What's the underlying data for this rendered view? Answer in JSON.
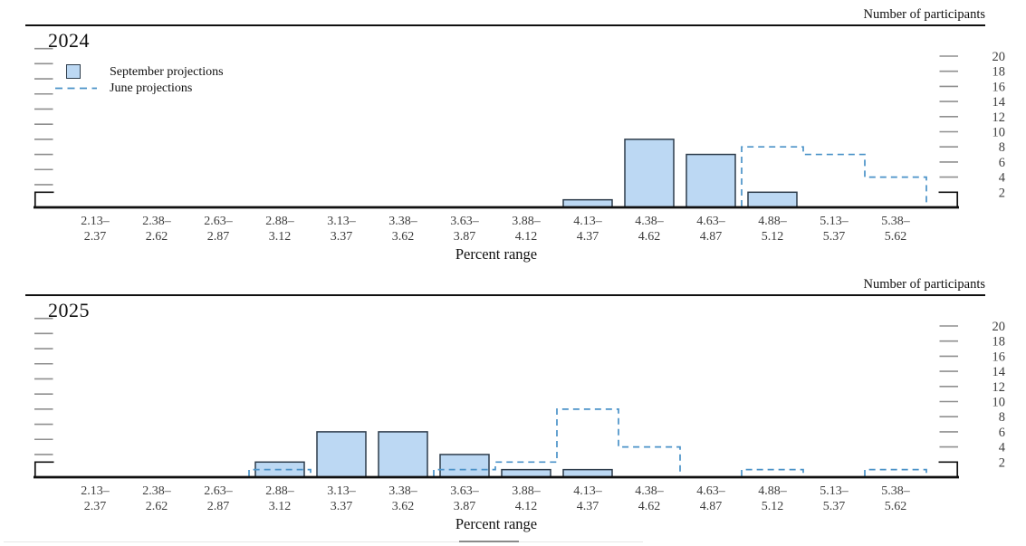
{
  "colors": {
    "bar_fill": "#bcd8f3",
    "bar_border": "#2d3c4b",
    "june_line": "#4a92c8",
    "tick": "#8f8f8f",
    "axis": "#101010",
    "axis_label_text": "#3d3d3d"
  },
  "legend": {
    "september_label": "September projections",
    "june_label": "June projections"
  },
  "chart_data": [
    {
      "type": "bar",
      "title": "2024",
      "ylabel": "Number of participants",
      "xlabel": "Percent range",
      "categories": [
        "2.13–2.37",
        "2.38–2.62",
        "2.63–2.87",
        "2.88–3.12",
        "3.13–3.37",
        "3.38–3.62",
        "3.63–3.87",
        "3.88–4.12",
        "4.13–4.37",
        "4.38–4.62",
        "4.63–4.87",
        "4.88–5.12",
        "5.13–5.37",
        "5.38–5.62"
      ],
      "series": [
        {
          "name": "September projections",
          "style": "bars",
          "values": [
            0,
            0,
            0,
            0,
            0,
            0,
            0,
            0,
            1,
            9,
            7,
            2,
            0,
            0
          ]
        },
        {
          "name": "June projections",
          "style": "dashed-step",
          "values": [
            0,
            0,
            0,
            0,
            0,
            0,
            0,
            0,
            0,
            0,
            0,
            8,
            7,
            4
          ]
        }
      ],
      "yticks": [
        2,
        4,
        6,
        8,
        10,
        12,
        14,
        16,
        18,
        20
      ],
      "ylim": [
        0,
        21.5
      ],
      "legend_position": "top-left",
      "grid": false
    },
    {
      "type": "bar",
      "title": "2025",
      "ylabel": "Number of participants",
      "xlabel": "Percent range",
      "categories": [
        "2.13–2.37",
        "2.38–2.62",
        "2.63–2.87",
        "2.88–3.12",
        "3.13–3.37",
        "3.38–3.62",
        "3.63–3.87",
        "3.88–4.12",
        "4.13–4.37",
        "4.38–4.62",
        "4.63–4.87",
        "4.88–5.12",
        "5.13–5.37",
        "5.38–5.62"
      ],
      "series": [
        {
          "name": "September projections",
          "style": "bars",
          "values": [
            0,
            0,
            0,
            2,
            6,
            6,
            3,
            1,
            1,
            0,
            0,
            0,
            0,
            0
          ]
        },
        {
          "name": "June projections",
          "style": "dashed-step",
          "values": [
            0,
            0,
            0,
            1,
            0,
            0,
            1,
            2,
            9,
            4,
            0,
            1,
            0,
            1
          ]
        }
      ],
      "yticks": [
        2,
        4,
        6,
        8,
        10,
        12,
        14,
        16,
        18,
        20
      ],
      "ylim": [
        0,
        21.5
      ],
      "legend_position": "none",
      "grid": false
    }
  ]
}
